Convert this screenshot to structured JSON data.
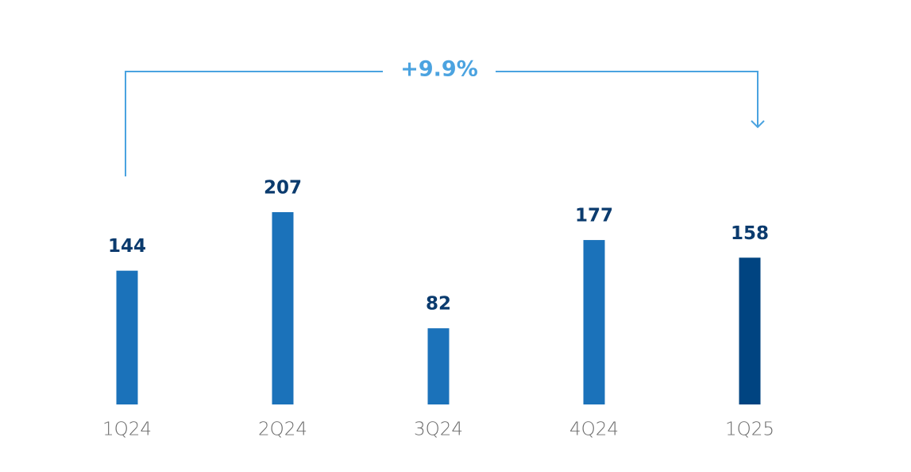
{
  "chart_data": {
    "type": "bar",
    "categories": [
      "1Q24",
      "2Q24",
      "3Q24",
      "4Q24",
      "1Q25"
    ],
    "values": [
      144,
      207,
      82,
      177,
      158
    ],
    "colors": [
      "#1b72ba",
      "#1b72ba",
      "#1b72ba",
      "#1b72ba",
      "#004481"
    ],
    "annotation": "+9.9%"
  }
}
